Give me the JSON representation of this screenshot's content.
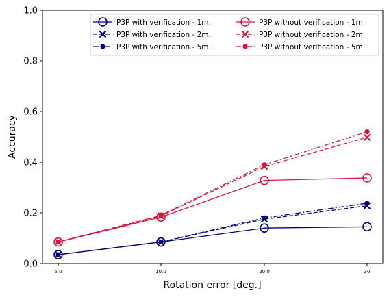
{
  "chart_data": {
    "type": "line",
    "title": "",
    "xlabel": "Rotation error [deg.]",
    "ylabel": "Accuracy",
    "categories": [
      "5.0",
      "10.0",
      "20.0",
      "30"
    ],
    "ylim": [
      0,
      1.0
    ],
    "yticks": [
      "0.0",
      "0.2",
      "0.4",
      "0.6",
      "0.8",
      "1.0"
    ],
    "grid": false,
    "legend_position": "top-right",
    "legend_columns": 2,
    "series": [
      {
        "name": "P3P with verification - 1m.",
        "values": [
          0.035,
          0.085,
          0.14,
          0.145
        ],
        "color": "#000080",
        "linestyle": "solid",
        "marker": "circle-open"
      },
      {
        "name": "P3P with verification - 2m.",
        "values": [
          0.035,
          0.085,
          0.175,
          0.228
        ],
        "color": "#000080",
        "linestyle": "dashed",
        "marker": "x"
      },
      {
        "name": "P3P with verification - 5m.",
        "values": [
          0.035,
          0.085,
          0.18,
          0.238
        ],
        "color": "#000080",
        "linestyle": "dashdot",
        "marker": "dot"
      },
      {
        "name": "P3P without verification - 1m.",
        "values": [
          0.085,
          0.183,
          0.328,
          0.338
        ],
        "color": "#dc143c",
        "linestyle": "solid",
        "marker": "circle-open"
      },
      {
        "name": "P3P without verification - 2m.",
        "values": [
          0.085,
          0.188,
          0.383,
          0.498
        ],
        "color": "#dc143c",
        "linestyle": "dashed",
        "marker": "x"
      },
      {
        "name": "P3P without verification - 5m.",
        "values": [
          0.085,
          0.19,
          0.39,
          0.52
        ],
        "color": "#dc143c",
        "linestyle": "dashdot",
        "marker": "dot"
      }
    ]
  }
}
